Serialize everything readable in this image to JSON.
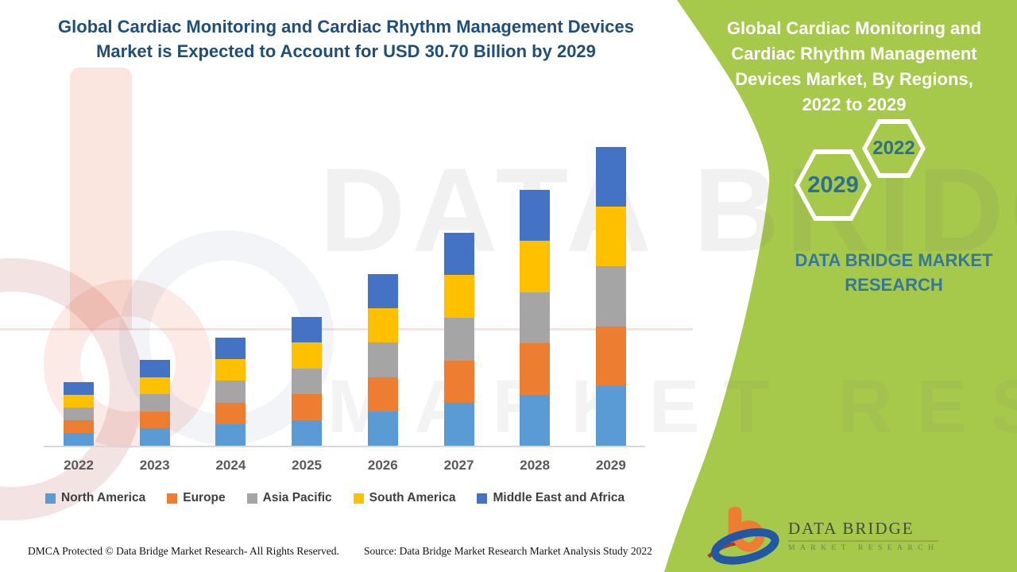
{
  "page": {
    "background": "#FFFFFF",
    "accent_green": "#A6C84B",
    "title_color": "#1F4E79"
  },
  "header": {
    "title_line1": "Global Cardiac Monitoring and Cardiac Rhythm Management Devices",
    "title_line2": "Market is Expected to Account for USD 30.70 Billion by 2029"
  },
  "chart_data": {
    "type": "bar",
    "stacked": true,
    "title": "Global Cardiac Monitoring and Cardiac Rhythm Management Devices Market is Expected to Account for USD 30.70 Billion by 2029",
    "categories": [
      "2022",
      "2023",
      "2024",
      "2025",
      "2026",
      "2027",
      "2028",
      "2029"
    ],
    "series": [
      {
        "name": "North America",
        "color": "#5B9BD5",
        "values": [
          1.31,
          1.76,
          2.22,
          2.65,
          3.53,
          4.38,
          5.26,
          6.14
        ]
      },
      {
        "name": "Europe",
        "color": "#ED7D31",
        "values": [
          1.31,
          1.76,
          2.22,
          2.65,
          3.53,
          4.38,
          5.26,
          6.14
        ]
      },
      {
        "name": "Asia Pacific",
        "color": "#A5A5A5",
        "values": [
          1.31,
          1.76,
          2.22,
          2.65,
          3.53,
          4.38,
          5.26,
          6.14
        ]
      },
      {
        "name": "South America",
        "color": "#FFC000",
        "values": [
          1.31,
          1.76,
          2.22,
          2.65,
          3.53,
          4.38,
          5.26,
          6.14
        ]
      },
      {
        "name": "Middle East and Africa",
        "color": "#4472C4",
        "values": [
          1.31,
          1.76,
          2.22,
          2.65,
          3.53,
          4.38,
          5.26,
          6.14
        ]
      }
    ],
    "totals_usd_billion": [
      6.55,
      8.8,
      11.1,
      13.25,
      17.65,
      21.9,
      26.3,
      30.7
    ],
    "y_unit": "USD Billion",
    "ylim": [
      0,
      31
    ],
    "gridlines": false,
    "legend_position": "bottom",
    "axis_label_color": "#595959"
  },
  "side_panel": {
    "heading_lines": [
      "Global Cardiac Monitoring and",
      "Cardiac Rhythm Management",
      "Devices Market, By Regions,",
      "2022 to 2029"
    ],
    "hexagon_years": {
      "small": "2022",
      "large": "2029"
    },
    "brand_lines": [
      "DATA BRIDGE MARKET",
      "RESEARCH"
    ]
  },
  "watermark": {
    "row1": "DATA BRIDGE",
    "row2": "MARKET RESEARCH"
  },
  "footer": {
    "left": "DMCA Protected © Data Bridge Market Research- All Rights Reserved.",
    "right": "Source: Data Bridge Market Research Market Analysis Study 2022"
  },
  "logo": {
    "name": "DATA BRIDGE",
    "sub": "MARKET RESEARCH"
  }
}
